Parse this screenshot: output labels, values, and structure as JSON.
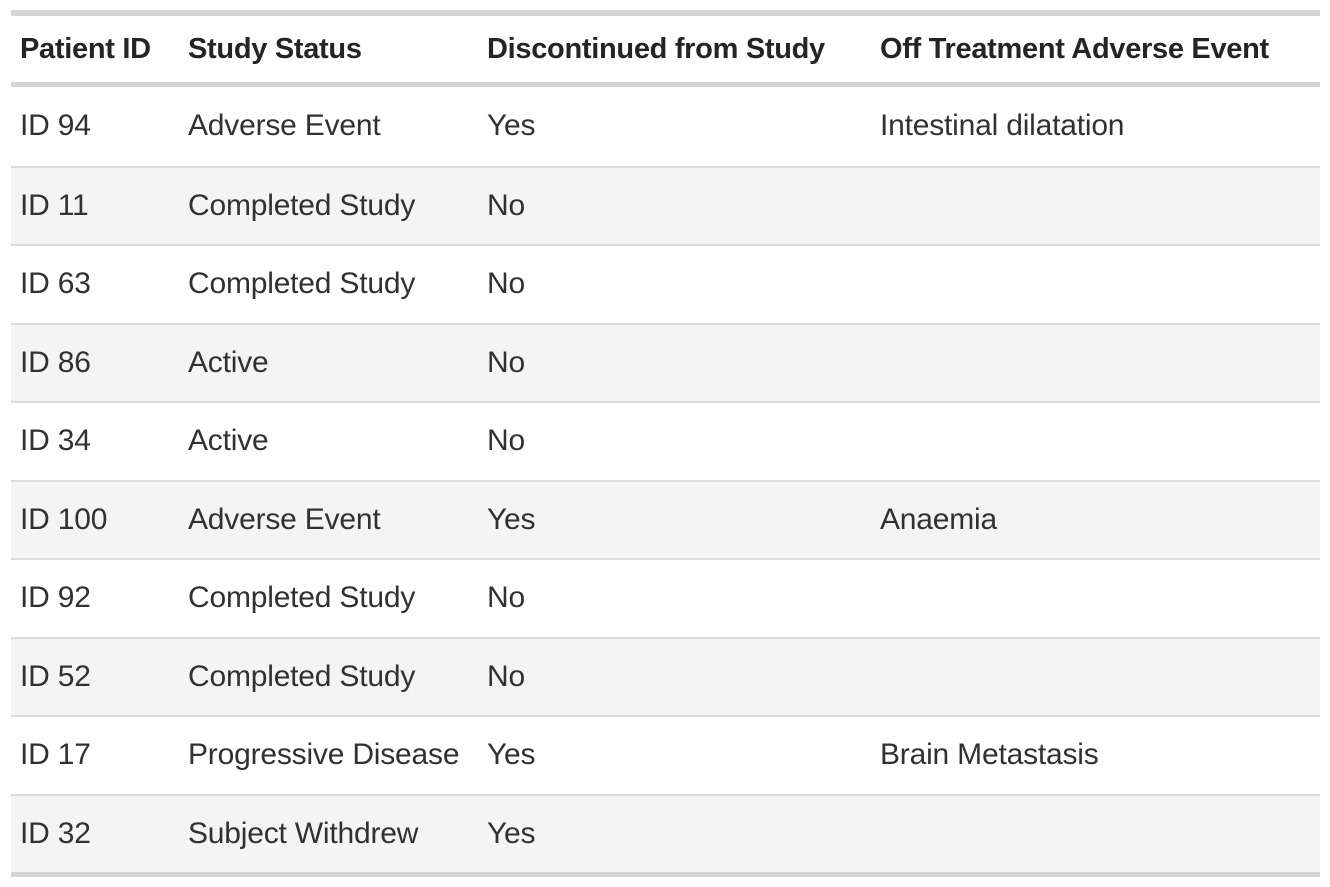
{
  "chart_data": {
    "type": "table",
    "columns": [
      "Patient ID",
      "Study Status",
      "Discontinued from Study",
      "Off Treatment Adverse Event"
    ],
    "rows": [
      [
        "ID 94",
        "Adverse Event",
        "Yes",
        "Intestinal dilatation"
      ],
      [
        "ID 11",
        "Completed Study",
        "No",
        ""
      ],
      [
        "ID 63",
        "Completed Study",
        "No",
        ""
      ],
      [
        "ID 86",
        "Active",
        "No",
        ""
      ],
      [
        "ID 34",
        "Active",
        "No",
        ""
      ],
      [
        "ID 100",
        "Adverse Event",
        "Yes",
        "Anaemia"
      ],
      [
        "ID 92",
        "Completed Study",
        "No",
        ""
      ],
      [
        "ID 52",
        "Completed Study",
        "No",
        ""
      ],
      [
        "ID 17",
        "Progressive Disease",
        "Yes",
        "Brain Metastasis"
      ],
      [
        "ID 32",
        "Subject Withdrew",
        "Yes",
        ""
      ]
    ],
    "layout": {
      "striped": true,
      "striped_row_parity": "even",
      "gridlines": "horizontal"
    }
  },
  "colors": {
    "background": "#ffffff",
    "header_text": "#252423",
    "body_text": "#323130",
    "outer_border": "#d6d6d6",
    "row_divider": "#dcdcdc",
    "stripe_background": "#f4f4f4"
  }
}
